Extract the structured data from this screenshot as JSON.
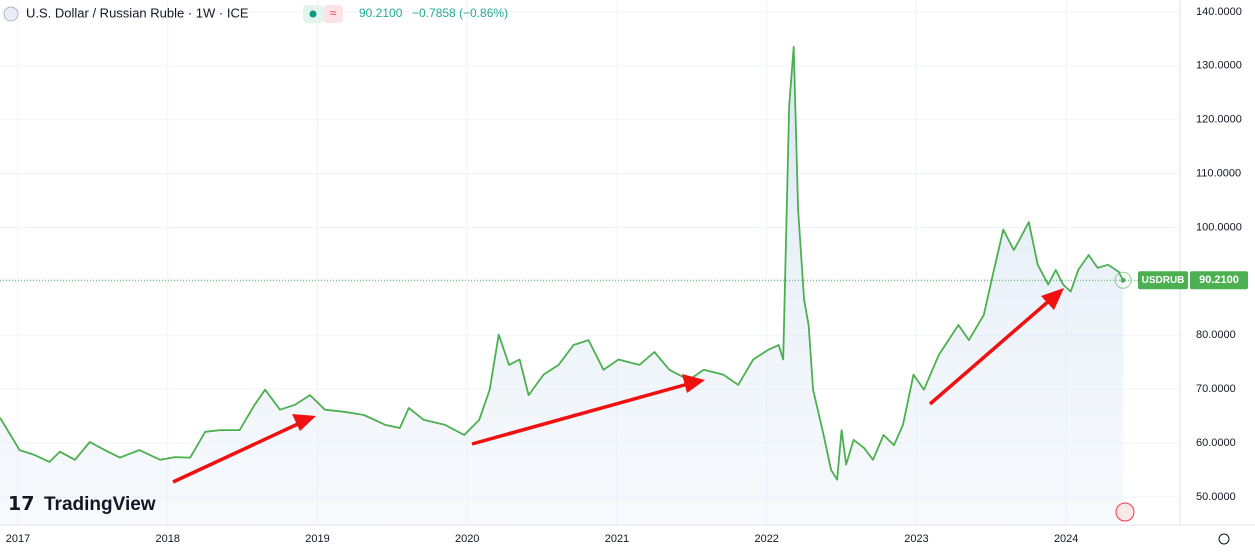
{
  "chart_data": {
    "type": "line",
    "title": "U.S. Dollar / Russian Ruble · 1W · ICE",
    "price": "90.2100",
    "change": "−0.7858 (−0.86%)",
    "symbol": "USDRUB",
    "brand": "TradingView",
    "color": "#4caf50",
    "xlim": [
      2016.88,
      2024.76
    ],
    "xticks": [
      2017,
      2018,
      2019,
      2020,
      2021,
      2022,
      2023,
      2024
    ],
    "ylim": [
      44.8,
      142.2
    ],
    "yticks": [
      {
        "value": 50,
        "label": "50.0000"
      },
      {
        "value": 60,
        "label": "60.0000"
      },
      {
        "value": 70,
        "label": "70.0000"
      },
      {
        "value": 80,
        "label": "80.0000"
      },
      {
        "value": 90,
        "label": "90.0000"
      },
      {
        "value": 100,
        "label": "100.0000"
      },
      {
        "value": 110,
        "label": "110.0000"
      },
      {
        "value": 120,
        "label": "120.0000"
      },
      {
        "value": 130,
        "label": "130.0000"
      },
      {
        "value": 140,
        "label": "140.0000"
      }
    ],
    "grid": true,
    "x": [
      2016.88,
      2016.95,
      2017.01,
      2017.11,
      2017.21,
      2017.28,
      2017.38,
      2017.48,
      2017.58,
      2017.68,
      2017.81,
      2017.95,
      2018.05,
      2018.15,
      2018.25,
      2018.35,
      2018.48,
      2018.58,
      2018.65,
      2018.75,
      2018.85,
      2018.95,
      2019.05,
      2019.18,
      2019.31,
      2019.45,
      2019.55,
      2019.61,
      2019.71,
      2019.85,
      2019.98,
      2020.08,
      2020.15,
      2020.21,
      2020.28,
      2020.35,
      2020.41,
      2020.51,
      2020.61,
      2020.71,
      2020.81,
      2020.91,
      2021.01,
      2021.15,
      2021.25,
      2021.35,
      2021.48,
      2021.58,
      2021.71,
      2021.81,
      2021.91,
      2022.01,
      2022.08,
      2022.11,
      2022.15,
      2022.18,
      2022.21,
      2022.25,
      2022.28,
      2022.31,
      2022.38,
      2022.43,
      2022.47,
      2022.5,
      2022.53,
      2022.58,
      2022.65,
      2022.71,
      2022.78,
      2022.85,
      2022.91,
      2022.98,
      2023.05,
      2023.15,
      2023.28,
      2023.35,
      2023.45,
      2023.51,
      2023.58,
      2023.65,
      2023.68,
      2023.75,
      2023.81,
      2023.88,
      2023.93,
      2023.98,
      2024.03,
      2024.08,
      2024.15,
      2024.21,
      2024.28,
      2024.35,
      2024.38
    ],
    "values": [
      64.7,
      61.5,
      58.7,
      57.8,
      56.5,
      58.4,
      56.9,
      60.2,
      58.7,
      57.3,
      58.7,
      56.9,
      57.4,
      57.3,
      62.1,
      62.4,
      62.4,
      67.1,
      69.9,
      66.2,
      67.1,
      68.9,
      66.2,
      65.8,
      65.2,
      63.4,
      62.8,
      66.5,
      64.3,
      63.4,
      61.5,
      64.3,
      69.9,
      80.1,
      74.5,
      75.5,
      68.9,
      72.7,
      74.5,
      78.2,
      79.1,
      73.6,
      75.5,
      74.5,
      76.9,
      73.6,
      71.7,
      73.6,
      72.7,
      70.8,
      75.5,
      77.3,
      78.2,
      75.5,
      122.7,
      133.5,
      103.3,
      86.6,
      81.9,
      69.9,
      61.5,
      55.0,
      53.2,
      62.4,
      56.0,
      60.6,
      59.1,
      56.9,
      61.5,
      59.6,
      63.4,
      72.7,
      69.9,
      76.4,
      81.9,
      79.1,
      83.8,
      91.2,
      99.6,
      95.8,
      97.3,
      101.0,
      93.1,
      89.4,
      92.1,
      89.4,
      88.1,
      92.1,
      94.9,
      92.5,
      93.1,
      91.8,
      90.21
    ]
  }
}
